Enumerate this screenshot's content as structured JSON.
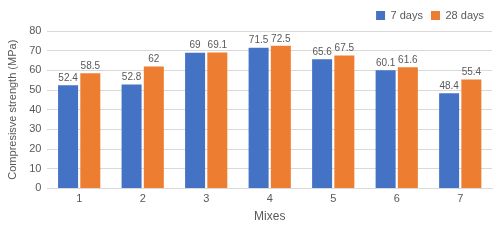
{
  "chart_data": {
    "type": "bar",
    "categories": [
      "1",
      "2",
      "3",
      "4",
      "5",
      "6",
      "7"
    ],
    "series": [
      {
        "name": "7 days",
        "color": "#4472c4",
        "values": [
          52.4,
          52.8,
          69,
          71.5,
          65.6,
          60.1,
          48.4
        ]
      },
      {
        "name": "28 days",
        "color": "#ed7d31",
        "values": [
          58.5,
          62,
          69.1,
          72.5,
          67.5,
          61.6,
          55.4
        ]
      }
    ],
    "x_label": "Mixes",
    "y_label": "Compresisve strength (MPa)",
    "ylim": [
      0,
      80
    ],
    "yticks": [
      0,
      10,
      20,
      30,
      40,
      50,
      60,
      70,
      80
    ],
    "grid": true,
    "legend": "upper right",
    "data_labels": true
  }
}
